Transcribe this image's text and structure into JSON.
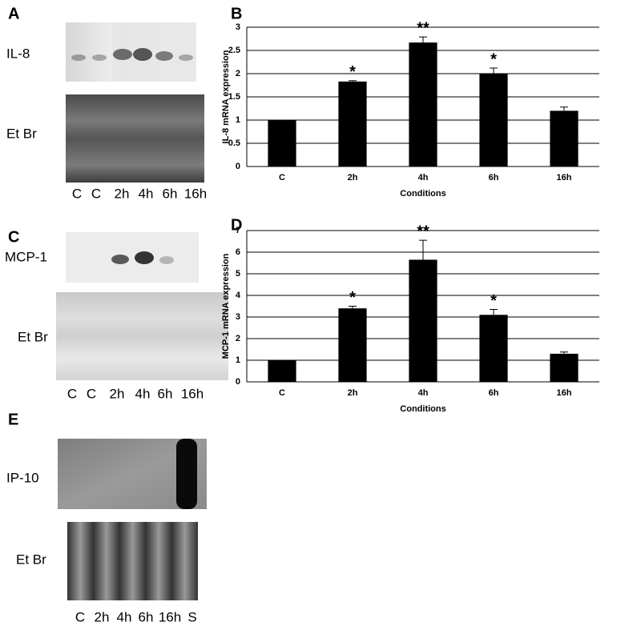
{
  "panels": [
    {
      "letter": "A",
      "rows": [
        "IL-8",
        "Et Br"
      ],
      "lanes": [
        "C",
        "C",
        "2h",
        "4h",
        "6h",
        "16h"
      ]
    },
    {
      "letter": "C",
      "rows": [
        "MCP-1",
        "Et Br"
      ],
      "lanes": [
        "C",
        "C",
        "2h",
        "4h",
        "6h",
        "16h"
      ]
    },
    {
      "letter": "E",
      "rows": [
        "IP-10",
        "Et Br"
      ],
      "lanes": [
        "C",
        "2h",
        "4h",
        "6h",
        "16h",
        "S"
      ]
    }
  ],
  "chart_data": [
    {
      "type": "bar",
      "label": "B",
      "x_label": "Conditions",
      "y_label": "IL-8 mRNA expression",
      "categories": [
        "C",
        "2h",
        "4h",
        "6h",
        "16h"
      ],
      "values": [
        1,
        1.83,
        2.67,
        2.0,
        1.2
      ],
      "errors": [
        0,
        0.02,
        0.12,
        0.12,
        0.08
      ],
      "significance": [
        null,
        "*",
        "**",
        "*",
        null
      ],
      "color": "#000000",
      "ylim": [
        0,
        3
      ],
      "yticks": [
        0,
        0.5,
        1,
        1.5,
        2,
        2.5,
        3
      ],
      "grid": true
    },
    {
      "type": "bar",
      "label": "D",
      "x_label": "Conditions",
      "y_label": "MCP-1 mRNA expression",
      "categories": [
        "C",
        "2h",
        "4h",
        "6h",
        "16h"
      ],
      "values": [
        1,
        3.4,
        5.65,
        3.1,
        1.3
      ],
      "errors": [
        0,
        0.1,
        0.9,
        0.25,
        0.08
      ],
      "significance": [
        null,
        "*",
        "**",
        "*",
        null
      ],
      "color": "#000000",
      "ylim": [
        0,
        7
      ],
      "yticks": [
        0,
        1,
        2,
        3,
        4,
        5,
        6,
        7
      ],
      "grid": true
    }
  ]
}
